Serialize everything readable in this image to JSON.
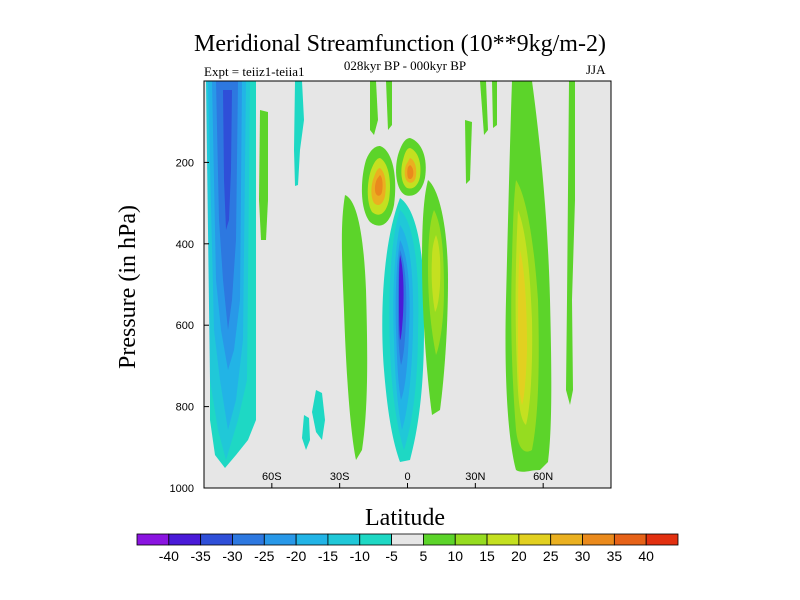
{
  "chart_data": {
    "type": "heatmap",
    "title": "Meridional Streamfunction (10**9kg/m-2)",
    "subtitle_left": "Expt = teiiz1-teiia1",
    "subtitle_center": "028kyr BP - 000kyr BP",
    "subtitle_right": "JJA",
    "xlabel": "Latitude",
    "ylabel": "Pressure (in hPa)",
    "xlim": [
      -90,
      90
    ],
    "ylim": [
      1000,
      0
    ],
    "x_ticks": [
      {
        "value": -60,
        "label": "60S"
      },
      {
        "value": -30,
        "label": "30S"
      },
      {
        "value": 0,
        "label": "0"
      },
      {
        "value": 30,
        "label": "30N"
      },
      {
        "value": 60,
        "label": "60N"
      }
    ],
    "y_ticks": [
      {
        "value": 200,
        "label": "200"
      },
      {
        "value": 400,
        "label": "400"
      },
      {
        "value": 600,
        "label": "600"
      },
      {
        "value": 800,
        "label": "800"
      },
      {
        "value": 1000,
        "label": "1000"
      }
    ],
    "background_color": "#e6e6e6",
    "colorbar": {
      "labels": [
        "-40",
        "-35",
        "-30",
        "-25",
        "-20",
        "-15",
        "-10",
        "-5",
        "5",
        "10",
        "15",
        "20",
        "25",
        "30",
        "35",
        "40"
      ],
      "colors": [
        "#8a14e0",
        "#4a1ad8",
        "#2f4fd8",
        "#2d78e0",
        "#2898e8",
        "#22b4e6",
        "#20c8d8",
        "#1ed8c4",
        "#e6e6e6",
        "#5cd42a",
        "#96dc20",
        "#c4e020",
        "#e2d020",
        "#eab020",
        "#ea8a1c",
        "#e66218",
        "#e23010"
      ]
    },
    "features": [
      {
        "name": "southern-negative-cell",
        "lat_range": [
          -82,
          -68
        ],
        "p_range": [
          0,
          960
        ],
        "min_value": -30
      },
      {
        "name": "equatorial-negative-cell",
        "lat_range": [
          -8,
          4
        ],
        "p_range": [
          280,
          940
        ],
        "min_value": -35
      },
      {
        "name": "upper-positive-cell-west",
        "lat_range": [
          -14,
          -8
        ],
        "p_range": [
          130,
          310
        ],
        "max_value": 30
      },
      {
        "name": "upper-positive-cell-east",
        "lat_range": [
          -2,
          6
        ],
        "p_range": [
          130,
          260
        ],
        "max_value": 30
      },
      {
        "name": "northern-positive-cell",
        "lat_range": [
          42,
          58
        ],
        "p_range": [
          0,
          960
        ],
        "max_value": 20
      },
      {
        "name": "positive-band-north-of-equator",
        "lat_range": [
          8,
          16
        ],
        "p_range": [
          280,
          780
        ],
        "max_value": 15
      },
      {
        "name": "positive-band-south-of-equator",
        "lat_range": [
          -26,
          -14
        ],
        "p_range": [
          300,
          920
        ],
        "max_value": 10
      }
    ]
  }
}
